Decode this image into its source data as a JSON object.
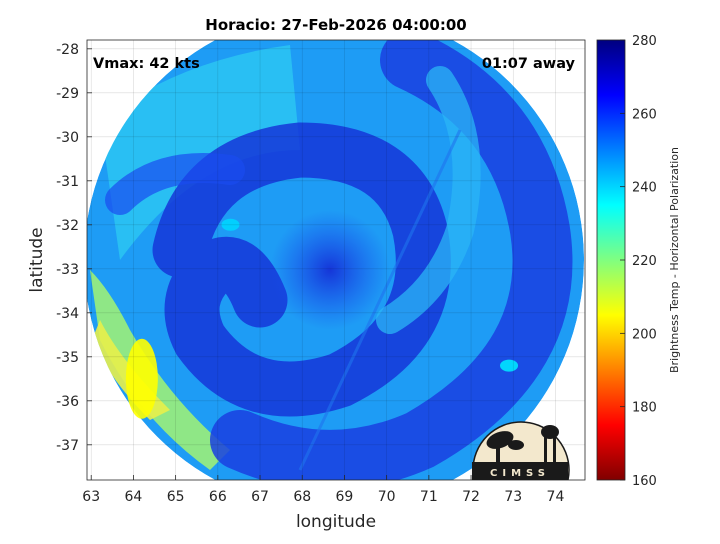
{
  "chart_data": {
    "type": "heatmap",
    "title": "Horacio: 27-Feb-2026 04:00:00",
    "xlabel": "longitude",
    "ylabel": "latitude",
    "xlim": [
      62.9,
      74.7
    ],
    "ylim": [
      -37.8,
      -27.8
    ],
    "x_ticks": [
      63,
      64,
      65,
      66,
      67,
      68,
      69,
      70,
      71,
      72,
      73,
      74
    ],
    "y_ticks": [
      -28,
      -29,
      -30,
      -31,
      -32,
      -33,
      -34,
      -35,
      -36,
      -37
    ],
    "grid": true,
    "annotations": {
      "vmax": "Vmax: 42 kts",
      "time_away": "01:07 away"
    },
    "colorbar": {
      "label": "Brightness Temp - Horizontal Polarization",
      "range": [
        160,
        280
      ],
      "ticks": [
        160,
        180,
        200,
        220,
        240,
        260,
        280
      ],
      "colormap": [
        "#800000",
        "#ff0000",
        "#ff8000",
        "#ffff00",
        "#80ff80",
        "#00ffff",
        "#0080ff",
        "#0000ff",
        "#000080"
      ]
    },
    "swath_center": [
      68.55,
      -32.85
    ],
    "features": [
      {
        "lon": 66.3,
        "lat": -32.0,
        "value": 240
      },
      {
        "lon": 72.9,
        "lat": -35.2,
        "value": 238
      },
      {
        "lon": 64.2,
        "lat": -35.5,
        "value": 205
      }
    ]
  },
  "logo": {
    "text": "CIMSS"
  }
}
